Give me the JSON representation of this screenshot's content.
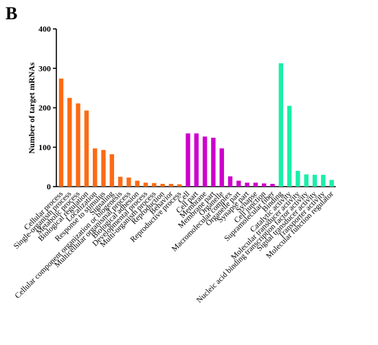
{
  "panel_label": "B",
  "colors": {
    "biological_process": "#FF6A13",
    "cellular_component": "#CC00CC",
    "molecular_function": "#19EFA8"
  },
  "chart_data": {
    "type": "bar",
    "title": "",
    "xlabel": "",
    "ylabel": "Number of target mRNAs",
    "ylim": [
      0,
      400
    ],
    "yticks": [
      0,
      100,
      200,
      300,
      400
    ],
    "grid": false,
    "groups": [
      {
        "color_key": "biological_process",
        "categories": [
          "Cellular process",
          "Single-organism process",
          "Metabolic process",
          "Biological regulation",
          "Localization",
          "Response to stimulus",
          "Signaling",
          "Cellular component organization or biogenesis",
          "Multicellular organismal process",
          "Biological adhesion",
          "Developmental process",
          "Multi-organism process",
          "Reproduction",
          "Behavior",
          "Reproductive process"
        ],
        "values": [
          274,
          225,
          211,
          193,
          97,
          93,
          82,
          25,
          23,
          15,
          10,
          9,
          7,
          7,
          6
        ]
      },
      {
        "color_key": "cellular_component",
        "categories": [
          "Cell",
          "Cell part",
          "Membrane",
          "Membrane part",
          "Organelle",
          "Macromolecular complex",
          "Organelle part",
          "Synapse part",
          "Synapse",
          "Cell junction",
          "Supramolecular fiber"
        ],
        "values": [
          135,
          135,
          127,
          124,
          97,
          26,
          15,
          10,
          10,
          8,
          7
        ]
      },
      {
        "color_key": "molecular_function",
        "categories": [
          "Binding",
          "Catalytic activity",
          "Molecular transducer activity",
          "Nucleic acid binding transcription factor activity",
          "Signal transducer activity",
          "Transporter activity",
          "Molecular function regulator"
        ],
        "values": [
          313,
          205,
          40,
          31,
          30,
          30,
          17
        ]
      }
    ]
  }
}
